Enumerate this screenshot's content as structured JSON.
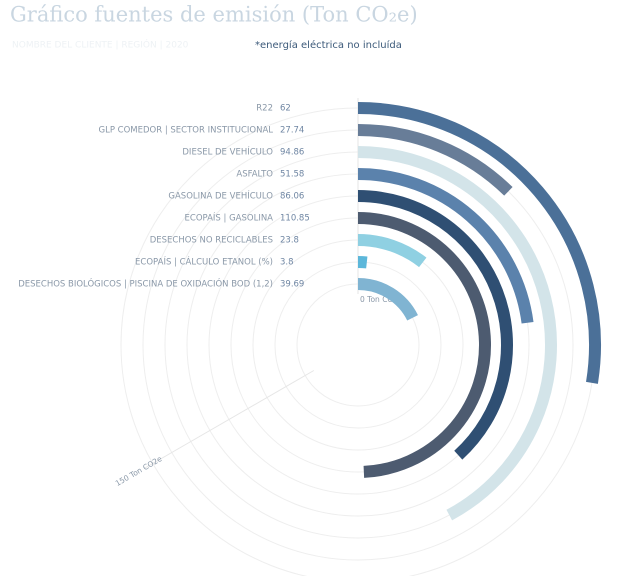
{
  "chart_data": {
    "type": "radial-bar",
    "title": "Gráfico fuentes de emisión (Ton CO₂e)",
    "subtitle": "NOMBRE DEL CLIENTE | REGIÓN | 2020",
    "note": "*energía eléctrica no incluída",
    "categories": [
      "R22",
      "GLP COMEDOR | SECTOR INSTITUCIONAL",
      "DIESEL DE VEHÍCULO",
      "ASFALTO",
      "GASOLINA DE VEHÍCULO",
      "ECOPAÍS | GASOLINA",
      "DESECHOS NO RECICLABLES",
      "ECOPAÍS | CÁLCULO ETANOL (%)",
      "DESECHOS BIOLÓGICOS | PISCINA DE OXIDACIÓN BOD (1,2)"
    ],
    "values": [
      62,
      27.74,
      94.86,
      51.58,
      86.06,
      110.85,
      23.8,
      3.8,
      39.69
    ],
    "colors": [
      "#4b7098",
      "#687d98",
      "#d3e4e9",
      "#5b82ac",
      "#2f4f73",
      "#4d5b70",
      "#8fd0e2",
      "#5cb7da",
      "#80b4d2"
    ],
    "ylim": [
      0,
      150
    ],
    "yticks": [
      {
        "value": 0,
        "label": "0 Ton CO2e"
      },
      {
        "value": 150,
        "label": "150 Ton CO2e"
      }
    ]
  }
}
